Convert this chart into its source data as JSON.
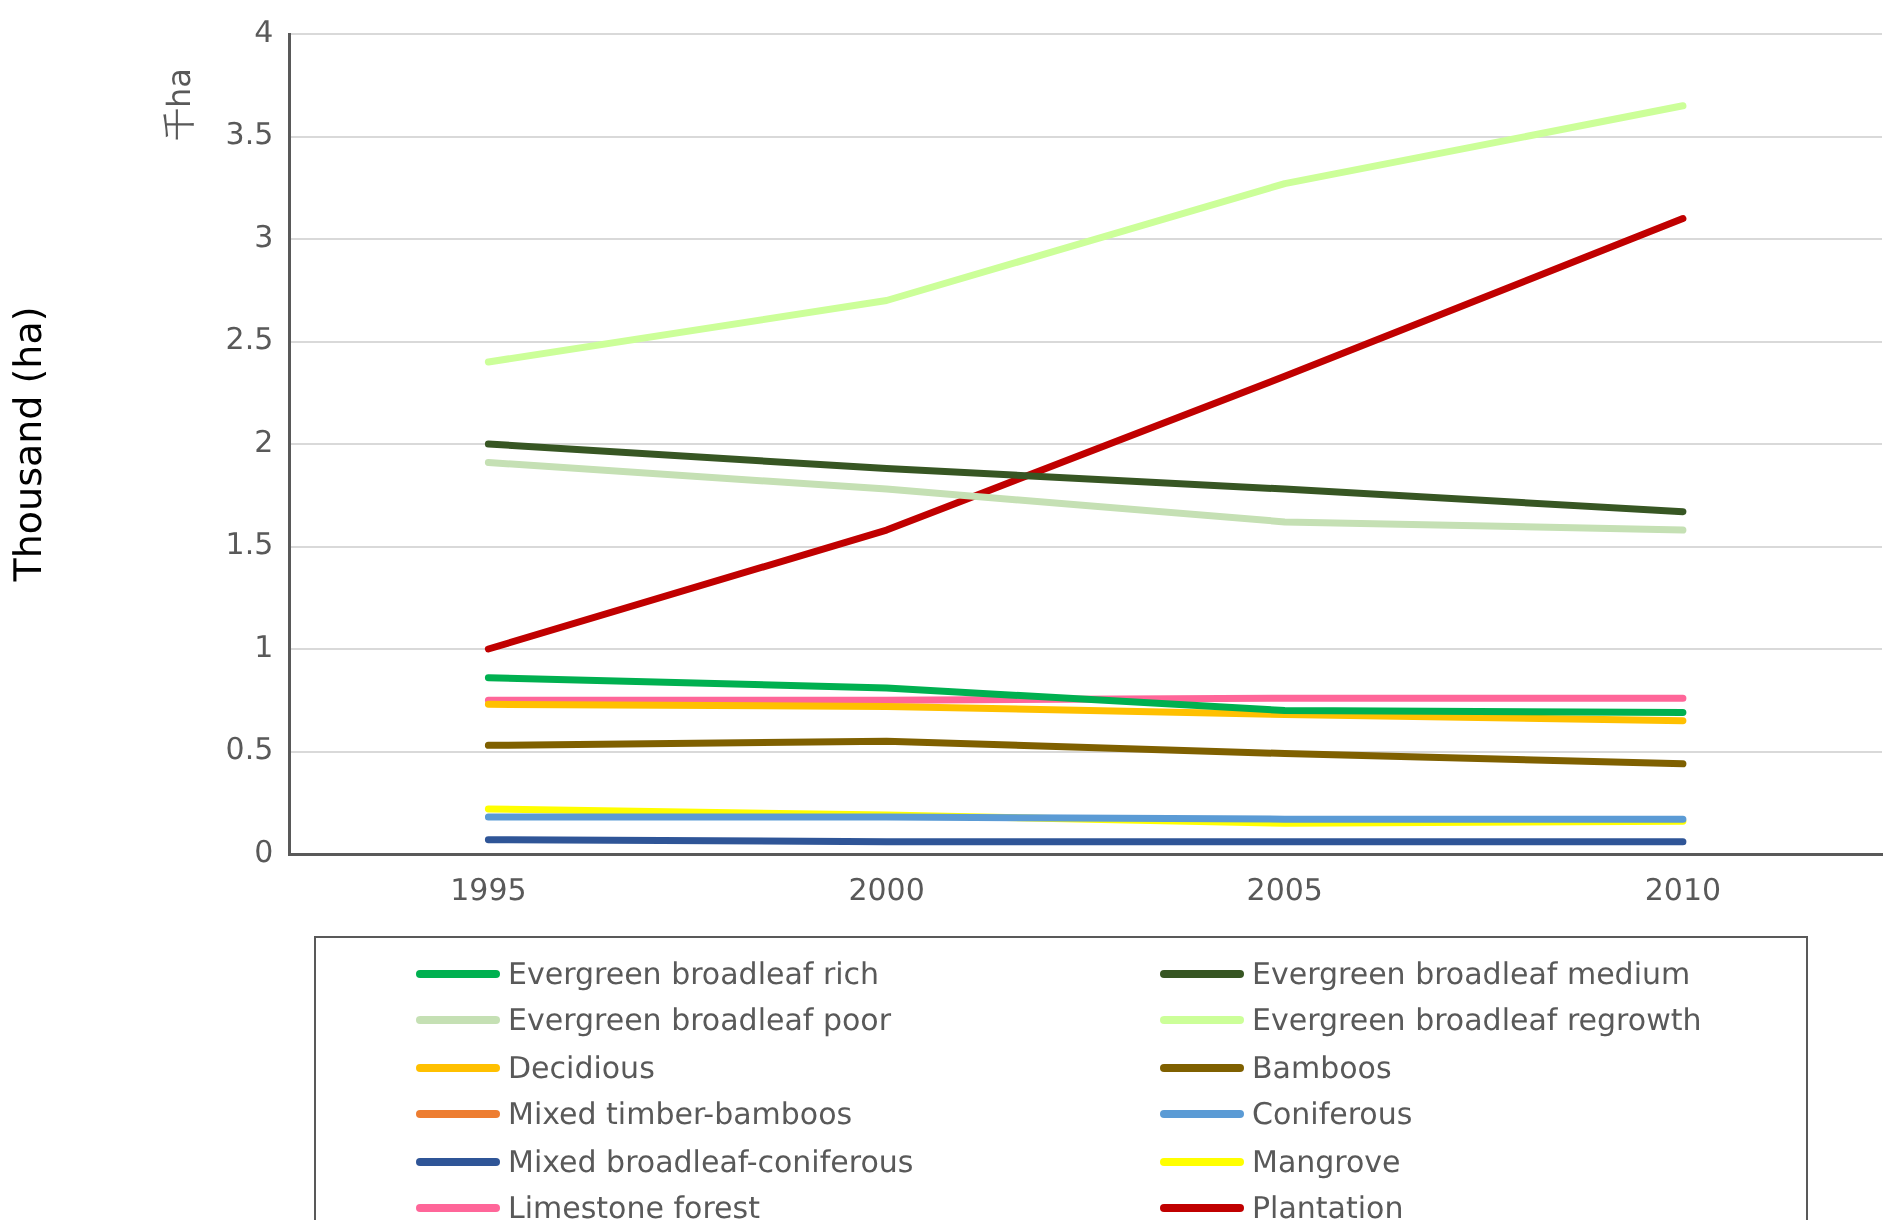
{
  "chart_data": {
    "type": "line",
    "ylabel": "Thousand (ha)",
    "annotations": [
      "千ha"
    ],
    "categories": [
      "1995",
      "2000",
      "2005",
      "2010"
    ],
    "ylim": [
      0,
      4
    ],
    "yticks": [
      0,
      0.5,
      1,
      1.5,
      2,
      2.5,
      3,
      3.5,
      4
    ],
    "grid": "y",
    "legend": "bottom",
    "marker": "none",
    "line_style": "solid",
    "series": [
      {
        "name": "Evergreen broadleaf rich",
        "color": "#00b050",
        "values": [
          0.86,
          0.81,
          0.7,
          0.69
        ]
      },
      {
        "name": "Evergreen broadleaf medium",
        "color": "#375623",
        "values": [
          2.0,
          1.88,
          1.78,
          1.67
        ]
      },
      {
        "name": "Evergreen broadleaf poor",
        "color": "#c5e0b4",
        "values": [
          1.91,
          1.78,
          1.62,
          1.58
        ]
      },
      {
        "name": "Evergreen broadleaf regrowth",
        "color": "#ccff99",
        "values": [
          2.4,
          2.7,
          3.27,
          3.65
        ]
      },
      {
        "name": "Decidious",
        "color": "#ffc000",
        "values": [
          0.73,
          0.72,
          0.68,
          0.65
        ]
      },
      {
        "name": "Bamboos",
        "color": "#7f6000",
        "values": [
          0.53,
          0.55,
          0.49,
          0.44
        ]
      },
      {
        "name": "Mixed timber-bamboos",
        "color": "#ed7d31",
        "values": [
          null,
          null,
          null,
          null
        ]
      },
      {
        "name": "Coniferous",
        "color": "#5b9bd5",
        "values": [
          0.18,
          0.18,
          0.17,
          0.17
        ]
      },
      {
        "name": "Mixed broadleaf-coniferous",
        "color": "#2f5597",
        "values": [
          0.07,
          0.06,
          0.06,
          0.06
        ]
      },
      {
        "name": "Mangrove",
        "color": "#ffff00",
        "values": [
          0.22,
          0.19,
          0.15,
          0.16
        ]
      },
      {
        "name": "Limestone forest",
        "color": "#ff6699",
        "values": [
          0.75,
          0.75,
          0.76,
          0.76
        ]
      },
      {
        "name": "Plantation",
        "color": "#c00000",
        "values": [
          1.0,
          1.58,
          2.33,
          3.1
        ]
      }
    ]
  }
}
